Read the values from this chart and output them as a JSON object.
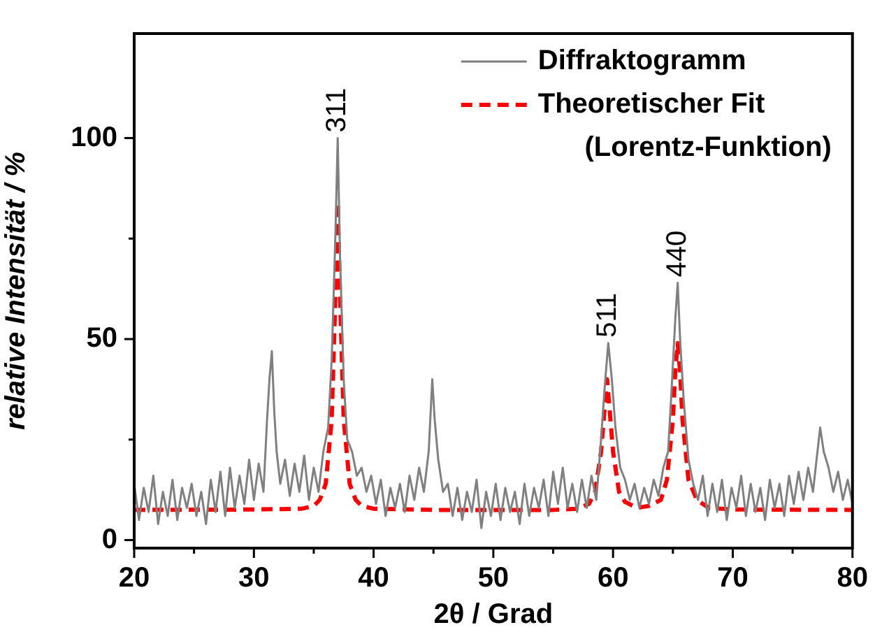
{
  "chart_data": {
    "type": "line",
    "xlabel": "2θ / Grad",
    "ylabel": "relative Intensität / %",
    "xlim": [
      20,
      80
    ],
    "xticks": [
      20,
      {
        "value": 25,
        "label": null
      },
      30,
      {
        "value": 35,
        "label": null
      },
      40,
      {
        "value": 45,
        "label": null
      },
      50,
      {
        "value": 55,
        "label": null
      },
      60,
      {
        "value": 65,
        "label": null
      },
      70,
      {
        "value": 75,
        "label": null
      },
      80
    ],
    "ylim": [
      -2,
      126
    ],
    "yticks": [
      0,
      {
        "value": 25,
        "label": null
      },
      50,
      {
        "value": 75,
        "label": null
      },
      100
    ],
    "grid": false,
    "legend": "top right",
    "marker": "none",
    "series": [
      {
        "name": "Diffraktogramm",
        "color": "#808080",
        "line_style": "solid",
        "x": [
          20,
          20.4,
          20.8,
          21.2,
          21.6,
          22,
          22.4,
          22.8,
          23.2,
          23.6,
          24,
          24.4,
          24.8,
          25.2,
          25.6,
          26,
          26.4,
          26.8,
          27.2,
          27.6,
          28,
          28.4,
          28.8,
          29.2,
          29.6,
          30,
          30.4,
          30.8,
          31.1,
          31.3,
          31.5,
          31.7,
          31.9,
          32.2,
          32.6,
          33,
          33.4,
          33.8,
          34.2,
          34.6,
          35,
          35.4,
          35.8,
          36.2,
          36.5,
          36.8,
          37,
          37.2,
          37.5,
          37.8,
          38.2,
          38.6,
          39,
          39.4,
          39.8,
          40.2,
          40.6,
          41,
          41.4,
          41.8,
          42.2,
          42.6,
          43,
          43.4,
          43.8,
          44.2,
          44.6,
          44.9,
          45.1,
          45.4,
          45.8,
          46.2,
          46.6,
          47,
          47.4,
          47.8,
          48.2,
          48.6,
          49,
          49.4,
          49.8,
          50.2,
          50.6,
          51,
          51.4,
          51.8,
          52.2,
          52.6,
          53,
          53.4,
          53.8,
          54.2,
          54.6,
          55,
          55.4,
          55.8,
          56.2,
          56.6,
          57,
          57.4,
          57.8,
          58.2,
          58.6,
          59,
          59.3,
          59.6,
          59.9,
          60.2,
          60.6,
          61,
          61.4,
          61.8,
          62.2,
          62.6,
          63,
          63.4,
          63.8,
          64.2,
          64.6,
          64.9,
          65.2,
          65.4,
          65.6,
          65.9,
          66.3,
          66.7,
          67.1,
          67.5,
          67.9,
          68.3,
          68.7,
          69.1,
          69.5,
          69.9,
          70.3,
          70.7,
          71.1,
          71.5,
          71.9,
          72.3,
          72.7,
          73.1,
          73.5,
          73.9,
          74.3,
          74.7,
          75.1,
          75.5,
          75.9,
          76.3,
          76.7,
          77,
          77.3,
          77.6,
          78,
          78.4,
          78.8,
          79.2,
          79.6,
          80
        ],
        "values": [
          14,
          5,
          13,
          7,
          16,
          4,
          12,
          6,
          15,
          5,
          13,
          8,
          14,
          6,
          12,
          4,
          15,
          7,
          17,
          6,
          18,
          8,
          16,
          9,
          20,
          10,
          19,
          12,
          30,
          40,
          47,
          32,
          22,
          14,
          20,
          11,
          19,
          12,
          21,
          10,
          18,
          12,
          22,
          28,
          45,
          75,
          100,
          70,
          40,
          25,
          22,
          16,
          18,
          12,
          16,
          9,
          15,
          6,
          13,
          8,
          14,
          7,
          16,
          10,
          18,
          12,
          22,
          40,
          30,
          20,
          12,
          14,
          6,
          13,
          5,
          12,
          7,
          15,
          3,
          12,
          6,
          14,
          5,
          13,
          7,
          12,
          4,
          14,
          6,
          13,
          8,
          15,
          6,
          17,
          9,
          18,
          8,
          14,
          7,
          15,
          8,
          16,
          10,
          25,
          38,
          49,
          40,
          28,
          18,
          15,
          10,
          14,
          8,
          13,
          9,
          15,
          11,
          18,
          22,
          38,
          55,
          64,
          50,
          35,
          20,
          14,
          10,
          16,
          6,
          14,
          7,
          15,
          5,
          13,
          8,
          16,
          6,
          14,
          7,
          13,
          5,
          15,
          8,
          14,
          6,
          16,
          9,
          17,
          10,
          18,
          12,
          20,
          28,
          22,
          18,
          12,
          17,
          10,
          15,
          9
        ]
      },
      {
        "name": "Theoretischer Fit (Lorentz-Funktion)",
        "color": "#ff0000",
        "line_style": "dashed",
        "x": [
          20,
          30,
          34,
          35,
          35.5,
          36,
          36.5,
          36.8,
          37,
          37.2,
          37.5,
          38,
          38.5,
          39,
          40,
          45,
          55,
          57,
          58,
          58.5,
          59,
          59.3,
          59.5,
          59.7,
          60,
          60.5,
          61,
          62,
          63,
          64,
          64.5,
          65,
          65.2,
          65.4,
          65.6,
          65.8,
          66.3,
          67,
          68,
          70,
          80
        ],
        "values": [
          7.5,
          7.6,
          7.8,
          8.5,
          10,
          14,
          30,
          60,
          84,
          60,
          30,
          14,
          10,
          8.5,
          7.8,
          7.5,
          7.5,
          7.8,
          9,
          12,
          22,
          33,
          40,
          33,
          22,
          12,
          9.5,
          8,
          8.5,
          10,
          15,
          30,
          42,
          49,
          42,
          30,
          15,
          10,
          8,
          7.6,
          7.5
        ]
      }
    ],
    "annotations": [
      {
        "text": "311",
        "x": 37,
        "y": 100
      },
      {
        "text": "511",
        "x": 59.6,
        "y": 49
      },
      {
        "text": "440",
        "x": 65.4,
        "y": 64
      }
    ]
  }
}
